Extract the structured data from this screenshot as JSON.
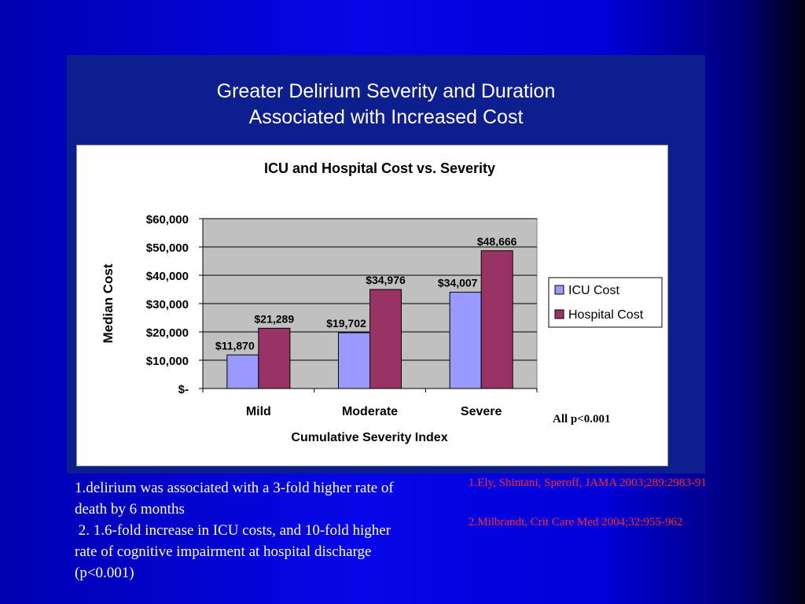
{
  "figure": {
    "title_line1": "Greater Delirium Severity and Duration",
    "title_line2": "Associated with Increased Cost",
    "significance": "All p<0.001"
  },
  "chart_data": {
    "type": "bar",
    "title": "ICU and Hospital Cost vs. Severity",
    "xlabel": "Cumulative Severity Index",
    "ylabel": "Median Cost",
    "categories": [
      "Mild",
      "Moderate",
      "Severe"
    ],
    "series": [
      {
        "name": "ICU Cost",
        "values": [
          11870,
          19702,
          34007
        ],
        "labels": [
          "$11,870",
          "$19,702",
          "$34,007"
        ],
        "color": "#9999ff"
      },
      {
        "name": "Hospital Cost",
        "values": [
          21289,
          34976,
          48666
        ],
        "labels": [
          "$21,289",
          "$34,976",
          "$48,666"
        ],
        "color": "#993366"
      }
    ],
    "ylim": [
      0,
      60000
    ],
    "yticks": [
      0,
      10000,
      20000,
      30000,
      40000,
      50000,
      60000
    ],
    "ytick_labels": [
      "$-",
      "$10,000",
      "$20,000",
      "$30,000",
      "$40,000",
      "$50,000",
      "$60,000"
    ],
    "grid": true,
    "plot_background": "#c0c0c0",
    "legend_position": "right"
  },
  "notes": {
    "line1": "1.delirium was associated with a 3-fold higher rate of",
    "line2": "death by 6 months",
    "line3": " 2. 1.6-fold increase in ICU costs, and 10-fold higher",
    "line4": "rate of cognitive impairment at hospital discharge",
    "line5": "(p<0.001)"
  },
  "references": {
    "ref1": "1.Ely, Shintani, Speroff, JAMA 2003;289:2983-91",
    "ref2": "2.Milbrandt, Crit Care Med 2004;32:955-962"
  }
}
